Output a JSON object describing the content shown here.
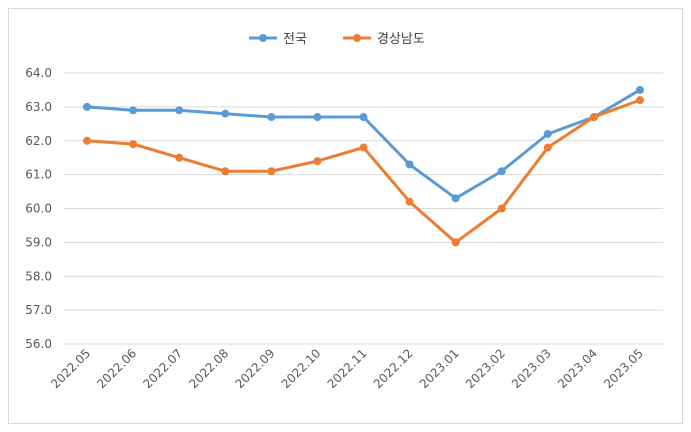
{
  "chart_data": {
    "type": "line",
    "title": "",
    "xlabel": "",
    "ylabel": "",
    "categories": [
      "2022.05",
      "2022.06",
      "2022.07",
      "2022.08",
      "2022.09",
      "2022.10",
      "2022.11",
      "2022.12",
      "2023.01",
      "2023.02",
      "2023.03",
      "2023.04",
      "2023.05"
    ],
    "ylim": [
      56.0,
      64.0
    ],
    "yticks": [
      "56.0",
      "57.0",
      "58.0",
      "59.0",
      "60.0",
      "61.0",
      "62.0",
      "63.0",
      "64.0"
    ],
    "grid": true,
    "legend_position": "top",
    "series": [
      {
        "name": "전국",
        "color": "#5b9bd5",
        "values": [
          63.0,
          62.9,
          62.9,
          62.8,
          62.7,
          62.7,
          62.7,
          61.3,
          60.3,
          61.1,
          62.2,
          62.7,
          63.5
        ]
      },
      {
        "name": "경상남도",
        "color": "#ed7d31",
        "values": [
          62.0,
          61.9,
          61.5,
          61.1,
          61.1,
          61.4,
          61.8,
          60.2,
          59.0,
          60.0,
          61.8,
          62.7,
          63.2
        ]
      }
    ]
  }
}
